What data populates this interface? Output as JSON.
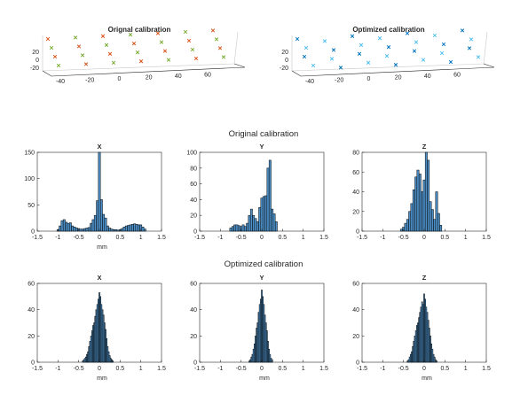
{
  "figure_3d": [
    {
      "title": "Orignal calibration",
      "x_ticks": [
        "-40",
        "-20",
        "0",
        "20",
        "40",
        "60"
      ],
      "z_ticks": [
        "20",
        "0",
        "-20"
      ],
      "marker_color_a": "#d95319",
      "marker_color_b": "#77ac30"
    },
    {
      "title": "Optimized calibration",
      "x_ticks": [
        "-40",
        "-20",
        "0",
        "20",
        "40",
        "60"
      ],
      "z_ticks": [
        "20",
        "0",
        "-20"
      ],
      "marker_color_a": "#0072bd",
      "marker_color_b": "#4dbeee"
    }
  ],
  "section_titles": {
    "original": "Original calibration",
    "optimized": "Optimized calibration"
  },
  "colors": {
    "bar_fill": "#4d8fc6",
    "bar_edge": "#000000",
    "axis": "#262626"
  },
  "chart_data": [
    {
      "type": "bar",
      "group": "Original calibration",
      "title": "X",
      "xlabel": "mm",
      "ylabel": "",
      "xlim": [
        -1.5,
        1.5
      ],
      "ylim": [
        0,
        150
      ],
      "yticks": [
        0,
        50,
        100,
        150
      ],
      "xticks": [
        "-1.5",
        "-1",
        "-0.5",
        "0",
        "0.5",
        "1",
        "1.5"
      ],
      "bin_width": 0.05,
      "bins": [
        [
          -1.0,
          3
        ],
        [
          -0.95,
          10
        ],
        [
          -0.9,
          20
        ],
        [
          -0.85,
          22
        ],
        [
          -0.8,
          17
        ],
        [
          -0.75,
          15
        ],
        [
          -0.7,
          16
        ],
        [
          -0.65,
          10
        ],
        [
          -0.6,
          8
        ],
        [
          -0.55,
          6
        ],
        [
          -0.5,
          5
        ],
        [
          -0.45,
          4
        ],
        [
          -0.4,
          4
        ],
        [
          -0.35,
          5
        ],
        [
          -0.3,
          6
        ],
        [
          -0.25,
          7
        ],
        [
          -0.2,
          15
        ],
        [
          -0.15,
          22
        ],
        [
          -0.1,
          30
        ],
        [
          -0.05,
          58
        ],
        [
          0.0,
          152
        ],
        [
          0.05,
          60
        ],
        [
          0.1,
          32
        ],
        [
          0.15,
          25
        ],
        [
          0.2,
          10
        ],
        [
          0.25,
          6
        ],
        [
          0.3,
          4
        ],
        [
          0.35,
          3
        ],
        [
          0.4,
          3
        ],
        [
          0.45,
          2
        ],
        [
          0.5,
          3
        ],
        [
          0.55,
          5
        ],
        [
          0.6,
          8
        ],
        [
          0.65,
          10
        ],
        [
          0.7,
          11
        ],
        [
          0.75,
          12
        ],
        [
          0.8,
          13
        ],
        [
          0.85,
          14
        ],
        [
          0.9,
          13
        ],
        [
          0.95,
          12
        ],
        [
          1.0,
          12
        ],
        [
          1.05,
          8
        ],
        [
          1.1,
          4
        ]
      ]
    },
    {
      "type": "bar",
      "group": "Original calibration",
      "title": "Y",
      "xlabel": "",
      "ylabel": "",
      "xlim": [
        -1.5,
        1.5
      ],
      "ylim": [
        0,
        100
      ],
      "yticks": [
        0,
        20,
        40,
        60,
        80,
        100
      ],
      "xticks": [
        "-1.5",
        "-1",
        "-0.5",
        "0",
        "0.5",
        "1",
        "1.5"
      ],
      "bin_width": 0.05,
      "bins": [
        [
          -0.75,
          4
        ],
        [
          -0.7,
          6
        ],
        [
          -0.65,
          8
        ],
        [
          -0.6,
          8
        ],
        [
          -0.55,
          7
        ],
        [
          -0.5,
          6
        ],
        [
          -0.45,
          8
        ],
        [
          -0.4,
          6
        ],
        [
          -0.35,
          10
        ],
        [
          -0.3,
          20
        ],
        [
          -0.25,
          28
        ],
        [
          -0.2,
          20
        ],
        [
          -0.15,
          16
        ],
        [
          -0.1,
          12
        ],
        [
          -0.05,
          30
        ],
        [
          0.0,
          42
        ],
        [
          0.05,
          44
        ],
        [
          0.1,
          45
        ],
        [
          0.15,
          80
        ],
        [
          0.2,
          90
        ],
        [
          0.25,
          28
        ],
        [
          0.3,
          22
        ],
        [
          0.35,
          12
        ]
      ]
    },
    {
      "type": "bar",
      "group": "Original calibration",
      "title": "Z",
      "xlabel": "",
      "ylabel": "",
      "xlim": [
        -1.5,
        1.5
      ],
      "ylim": [
        0,
        80
      ],
      "yticks": [
        0,
        20,
        40,
        60,
        80
      ],
      "xticks": [
        "-1.5",
        "-1",
        "-0.5",
        "0",
        "0.5",
        "1",
        "1.5"
      ],
      "bin_width": 0.05,
      "bins": [
        [
          -0.55,
          2
        ],
        [
          -0.5,
          4
        ],
        [
          -0.45,
          8
        ],
        [
          -0.4,
          12
        ],
        [
          -0.35,
          20
        ],
        [
          -0.3,
          28
        ],
        [
          -0.25,
          42
        ],
        [
          -0.2,
          55
        ],
        [
          -0.15,
          62
        ],
        [
          -0.1,
          58
        ],
        [
          -0.05,
          40
        ],
        [
          0.0,
          52
        ],
        [
          0.05,
          82
        ],
        [
          0.1,
          72
        ],
        [
          0.15,
          30
        ],
        [
          0.2,
          22
        ],
        [
          0.25,
          12
        ],
        [
          0.3,
          40
        ],
        [
          0.35,
          18
        ],
        [
          0.4,
          6
        ]
      ]
    },
    {
      "type": "bar",
      "group": "Optimized calibration",
      "title": "X",
      "xlabel": "mm",
      "ylabel": "",
      "xlim": [
        -1.5,
        1.5
      ],
      "ylim": [
        0,
        60
      ],
      "yticks": [
        0,
        20,
        40,
        60
      ],
      "xticks": [
        "-1.5",
        "-1",
        "-0.5",
        "0",
        "0.5",
        "1",
        "1.5"
      ],
      "bin_width": 0.025,
      "bins": [
        [
          -0.4,
          1
        ],
        [
          -0.375,
          2
        ],
        [
          -0.35,
          3
        ],
        [
          -0.325,
          4
        ],
        [
          -0.3,
          6
        ],
        [
          -0.275,
          8
        ],
        [
          -0.25,
          12
        ],
        [
          -0.225,
          16
        ],
        [
          -0.2,
          20
        ],
        [
          -0.175,
          24
        ],
        [
          -0.15,
          28
        ],
        [
          -0.125,
          30
        ],
        [
          -0.1,
          35
        ],
        [
          -0.075,
          40
        ],
        [
          -0.05,
          44
        ],
        [
          -0.025,
          48
        ],
        [
          0.0,
          53
        ],
        [
          0.025,
          50
        ],
        [
          0.05,
          44
        ],
        [
          0.075,
          40
        ],
        [
          0.1,
          36
        ],
        [
          0.125,
          30
        ],
        [
          0.15,
          25
        ],
        [
          0.175,
          18
        ],
        [
          0.2,
          12
        ],
        [
          0.225,
          8
        ],
        [
          0.25,
          5
        ],
        [
          0.275,
          3
        ],
        [
          0.3,
          2
        ],
        [
          0.325,
          1
        ]
      ]
    },
    {
      "type": "bar",
      "group": "Optimized calibration",
      "title": "Y",
      "xlabel": "mm",
      "ylabel": "",
      "xlim": [
        -1.5,
        1.5
      ],
      "ylim": [
        0,
        60
      ],
      "yticks": [
        0,
        20,
        40,
        60
      ],
      "xticks": [
        "-1.5",
        "-1",
        "-0.5",
        "0",
        "0.5",
        "1",
        "1.5"
      ],
      "bin_width": 0.025,
      "bins": [
        [
          -0.3,
          1
        ],
        [
          -0.275,
          2
        ],
        [
          -0.25,
          4
        ],
        [
          -0.225,
          6
        ],
        [
          -0.2,
          10
        ],
        [
          -0.175,
          14
        ],
        [
          -0.15,
          20
        ],
        [
          -0.125,
          26
        ],
        [
          -0.1,
          30
        ],
        [
          -0.075,
          38
        ],
        [
          -0.05,
          44
        ],
        [
          -0.025,
          48
        ],
        [
          0.0,
          55
        ],
        [
          0.025,
          50
        ],
        [
          0.05,
          44
        ],
        [
          0.075,
          36
        ],
        [
          0.1,
          30
        ],
        [
          0.125,
          24
        ],
        [
          0.15,
          16
        ],
        [
          0.175,
          10
        ],
        [
          0.2,
          6
        ],
        [
          0.225,
          3
        ],
        [
          0.25,
          2
        ]
      ]
    },
    {
      "type": "bar",
      "group": "Optimized calibration",
      "title": "Z",
      "xlabel": "mm",
      "ylabel": "",
      "xlim": [
        -1.5,
        1.5
      ],
      "ylim": [
        0,
        60
      ],
      "yticks": [
        0,
        20,
        40,
        60
      ],
      "xticks": [
        "-1.5",
        "-1",
        "-0.5",
        "0",
        "0.5",
        "1",
        "1.5"
      ],
      "bin_width": 0.025,
      "bins": [
        [
          -0.4,
          1
        ],
        [
          -0.375,
          2
        ],
        [
          -0.35,
          4
        ],
        [
          -0.325,
          6
        ],
        [
          -0.3,
          8
        ],
        [
          -0.275,
          12
        ],
        [
          -0.25,
          16
        ],
        [
          -0.225,
          20
        ],
        [
          -0.2,
          24
        ],
        [
          -0.175,
          28
        ],
        [
          -0.15,
          30
        ],
        [
          -0.125,
          34
        ],
        [
          -0.1,
          38
        ],
        [
          -0.075,
          42
        ],
        [
          -0.05,
          46
        ],
        [
          -0.025,
          44
        ],
        [
          0.0,
          52
        ],
        [
          0.025,
          48
        ],
        [
          0.05,
          42
        ],
        [
          0.075,
          38
        ],
        [
          0.1,
          32
        ],
        [
          0.125,
          26
        ],
        [
          0.15,
          20
        ],
        [
          0.175,
          14
        ],
        [
          0.2,
          10
        ],
        [
          0.225,
          6
        ],
        [
          0.25,
          4
        ],
        [
          0.275,
          2
        ],
        [
          0.3,
          1
        ]
      ]
    }
  ]
}
